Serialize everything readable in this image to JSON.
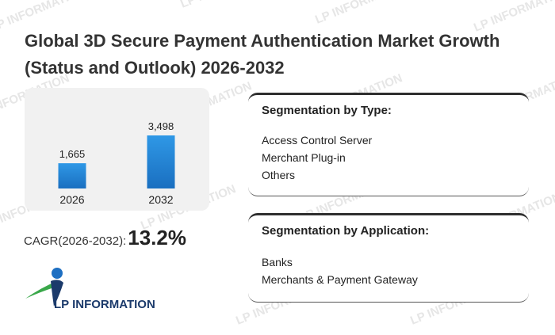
{
  "title": "Global 3D Secure Payment Authentication Market Growth (Status and Outlook) 2026-2032",
  "watermark_text": "LP INFORMATION",
  "chart_data": {
    "type": "bar",
    "categories": [
      "2026",
      "2032"
    ],
    "values": [
      1665,
      3498
    ],
    "value_labels": [
      "1,665",
      "3,498"
    ],
    "title": "",
    "xlabel": "",
    "ylabel": "",
    "ylim": [
      0,
      3498
    ],
    "grid": false,
    "bar_color": "#2b8bd8"
  },
  "cagr": {
    "label": "CAGR(2026-2032):",
    "value": "13.2%"
  },
  "logo": {
    "text": "LP INFORMATION",
    "colors": {
      "navy": "#1b3a6b",
      "green": "#3aa84a",
      "blue": "#1e6fc2"
    }
  },
  "segmentation_type": {
    "heading": "Segmentation by Type:",
    "items": [
      "Access Control Server",
      "Merchant Plug-in",
      "Others"
    ]
  },
  "segmentation_application": {
    "heading": "Segmentation by Application:",
    "items": [
      "Banks",
      "Merchants & Payment Gateway"
    ]
  }
}
